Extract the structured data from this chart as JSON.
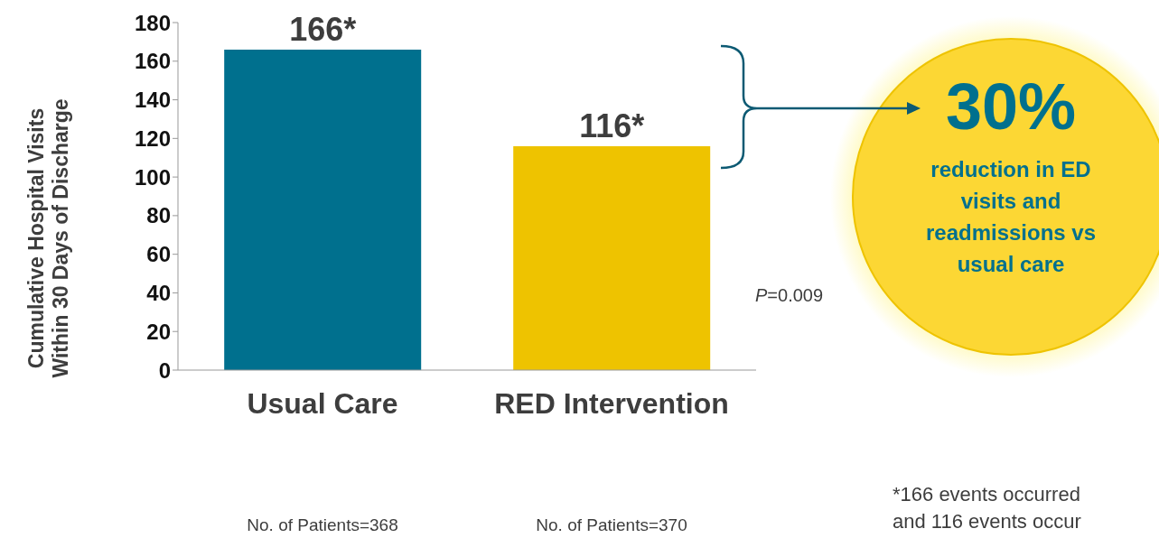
{
  "chart_data": {
    "type": "bar",
    "ylabel": "Cumulative Hospital Visits\nWithin 30 Days of Discharge",
    "categories": [
      "Usual Care",
      "RED Intervention"
    ],
    "values": [
      166,
      116
    ],
    "colors": [
      "#00708e",
      "#eec300"
    ],
    "value_labels": [
      "166*",
      "116*"
    ],
    "ylim": [
      0,
      180
    ],
    "yticks": [
      0,
      20,
      40,
      60,
      80,
      100,
      120,
      140,
      160,
      180
    ],
    "grid": false,
    "legend": false,
    "annotations": [
      "No. of Patients=368",
      "No. of Patients=370",
      "P=0.009",
      "30%",
      "reduction in ED visits and readmissions vs usual care",
      "*166 events occurred",
      "and 116 events occur"
    ]
  }
}
